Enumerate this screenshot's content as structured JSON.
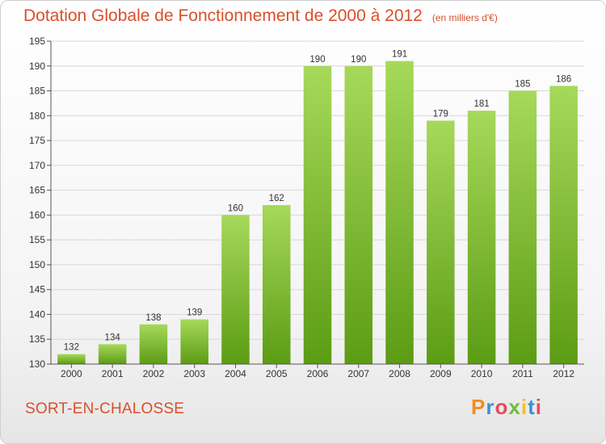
{
  "page": {
    "title": "Dotation Globale de Fonctionnement de 2000 à 2012",
    "subtitle": "(en milliers d'€)",
    "place": "SORT-EN-CHALOSSE",
    "brand": "Proxiti",
    "brand_colors": [
      "#f28c1e",
      "#3c8fd8",
      "#e84c5b",
      "#6bbf3a",
      "#f2c11e",
      "#3c8fd8",
      "#e84c5b"
    ]
  },
  "colors": {
    "title": "#d94f2a",
    "bar_light": "#a6d95a",
    "bar_dark": "#5c9c14",
    "grid": "#d8d8d8"
  },
  "chart_data": {
    "type": "bar",
    "title": "Dotation Globale de Fonctionnement de 2000 à 2012",
    "subtitle": "(en milliers d'€)",
    "categories": [
      "2000",
      "2001",
      "2002",
      "2003",
      "2004",
      "2005",
      "2006",
      "2007",
      "2008",
      "2009",
      "2010",
      "2011",
      "2012"
    ],
    "values": [
      132,
      134,
      138,
      139,
      160,
      162,
      190,
      190,
      191,
      179,
      181,
      185,
      186
    ],
    "ylim": [
      130,
      195
    ],
    "yticks": [
      130,
      135,
      140,
      145,
      150,
      155,
      160,
      165,
      170,
      175,
      180,
      185,
      190,
      195
    ],
    "grid": true,
    "xlabel": "",
    "ylabel": ""
  }
}
